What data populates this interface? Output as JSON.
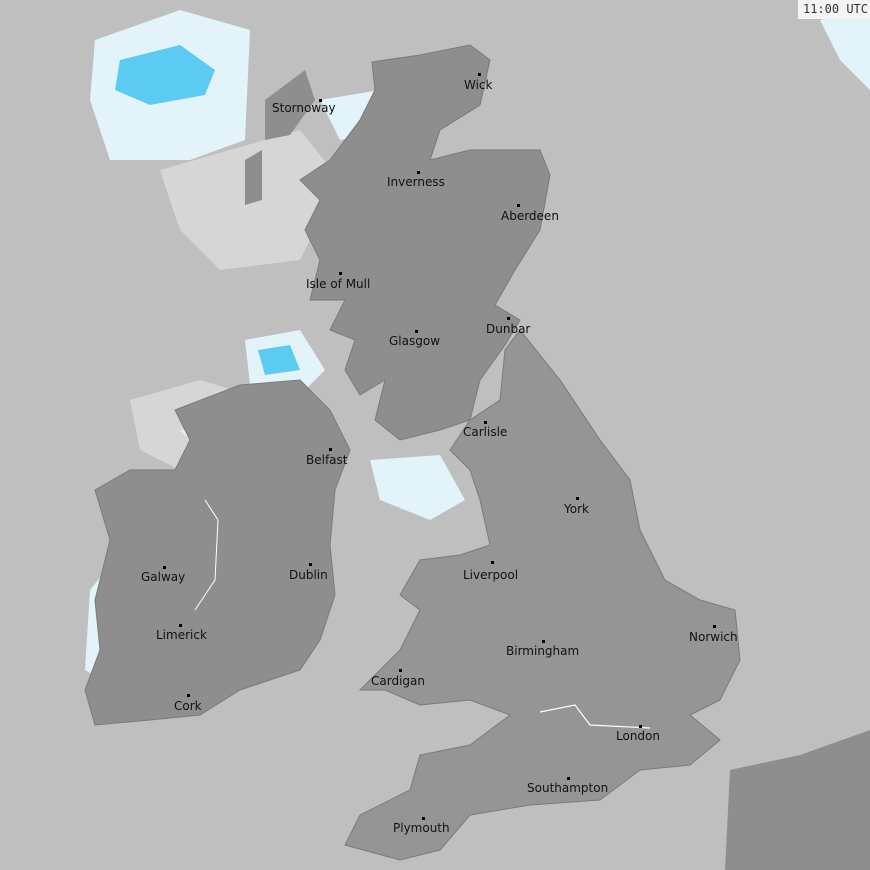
{
  "timestamp": "11:00 UTC",
  "colors": {
    "sea": "#bfbfbf",
    "land": "#8e8e8e",
    "england_wales": "#959595",
    "light_precip": "#e2f4fa",
    "moderate_precip": "#5ccbf2",
    "clouds": "#d6d6d6"
  },
  "cities": [
    {
      "name": "Wick",
      "dot": [
        479,
        74
      ],
      "label": [
        464,
        78
      ]
    },
    {
      "name": "Stornoway",
      "dot": [
        320,
        100
      ],
      "label": [
        272,
        101
      ]
    },
    {
      "name": "Inverness",
      "dot": [
        418,
        172
      ],
      "label": [
        387,
        175
      ]
    },
    {
      "name": "Aberdeen",
      "dot": [
        518,
        205
      ],
      "label": [
        501,
        209
      ]
    },
    {
      "name": "Isle of Mull",
      "dot": [
        340,
        273
      ],
      "label": [
        306,
        277
      ]
    },
    {
      "name": "Glasgow",
      "dot": [
        416,
        331
      ],
      "label": [
        389,
        334
      ]
    },
    {
      "name": "Dunbar",
      "dot": [
        508,
        318
      ],
      "label": [
        486,
        322
      ]
    },
    {
      "name": "Carlisle",
      "dot": [
        485,
        422
      ],
      "label": [
        463,
        425
      ]
    },
    {
      "name": "Belfast",
      "dot": [
        330,
        449
      ],
      "label": [
        306,
        453
      ]
    },
    {
      "name": "York",
      "dot": [
        577,
        498
      ],
      "label": [
        564,
        502
      ]
    },
    {
      "name": "Dublin",
      "dot": [
        310,
        564
      ],
      "label": [
        289,
        568
      ]
    },
    {
      "name": "Galway",
      "dot": [
        164,
        567
      ],
      "label": [
        141,
        570
      ]
    },
    {
      "name": "Liverpool",
      "dot": [
        492,
        562
      ],
      "label": [
        463,
        568
      ]
    },
    {
      "name": "Limerick",
      "dot": [
        180,
        625
      ],
      "label": [
        156,
        628
      ]
    },
    {
      "name": "Norwich",
      "dot": [
        714,
        626
      ],
      "label": [
        689,
        630
      ]
    },
    {
      "name": "Birmingham",
      "dot": [
        543,
        641
      ],
      "label": [
        506,
        644
      ]
    },
    {
      "name": "Cardigan",
      "dot": [
        400,
        670
      ],
      "label": [
        371,
        674
      ]
    },
    {
      "name": "Cork",
      "dot": [
        188,
        695
      ],
      "label": [
        174,
        699
      ]
    },
    {
      "name": "London",
      "dot": [
        640,
        726
      ],
      "label": [
        616,
        729
      ]
    },
    {
      "name": "Southampton",
      "dot": [
        568,
        778
      ],
      "label": [
        527,
        781
      ]
    },
    {
      "name": "Plymouth",
      "dot": [
        423,
        818
      ],
      "label": [
        393,
        821
      ]
    }
  ]
}
